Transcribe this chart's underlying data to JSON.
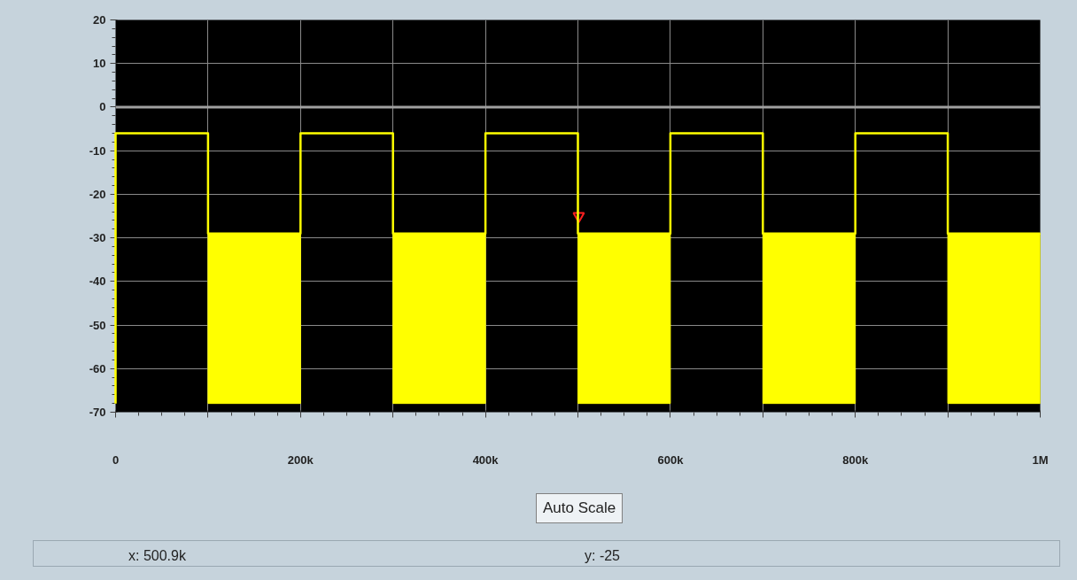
{
  "chart_data": {
    "type": "line",
    "xlim": [
      0,
      1000000
    ],
    "ylim": [
      -70,
      20
    ],
    "xticks": [
      0,
      {
        "value": 100000,
        "label": null
      },
      {
        "value": 200000,
        "label": "200k"
      },
      {
        "value": 300000,
        "label": null
      },
      {
        "value": 400000,
        "label": "400k"
      },
      {
        "value": 500000,
        "label": null
      },
      {
        "value": 600000,
        "label": "600k"
      },
      {
        "value": 700000,
        "label": null
      },
      {
        "value": 800000,
        "label": "800k"
      },
      {
        "value": 900000,
        "label": null
      },
      {
        "value": 1000000,
        "label": "1M"
      }
    ],
    "yticks": [
      -70,
      -60,
      -50,
      -40,
      -30,
      -20,
      -10,
      0,
      10,
      20
    ],
    "grid": true,
    "series": [
      {
        "type": "line",
        "color": "#ffff00",
        "x": [
          0,
          0,
          100000,
          100000,
          200000,
          200000,
          300000,
          300000,
          400000,
          400000,
          500000,
          500000,
          600000,
          600000,
          700000,
          700000,
          800000,
          800000,
          900000,
          900000,
          1000000
        ],
        "values": [
          -68,
          -6,
          -6,
          -29,
          -29,
          -6,
          -6,
          -29,
          -29,
          -6,
          -6,
          -29,
          -29,
          -6,
          -6,
          -29,
          -29,
          -6,
          -6,
          -29,
          -29
        ]
      },
      {
        "type": "bar",
        "color": "#ffff00",
        "x": [
          150000,
          350000,
          550000,
          750000,
          950000
        ],
        "base": [
          -68,
          -68,
          -68,
          -68,
          -68
        ],
        "values": [
          39,
          39,
          39,
          39,
          39
        ]
      },
      {
        "type": "scatter",
        "color": "#ff2020",
        "marker": "triangle",
        "x": [
          500900
        ],
        "values": [
          -25
        ]
      }
    ],
    "ref_lines": [
      {
        "axis": "y",
        "value": 0,
        "color": "#a0a0a0"
      }
    ],
    "annotations": [
      "Auto Scale",
      "x: 500.9k",
      "y: -25"
    ]
  }
}
